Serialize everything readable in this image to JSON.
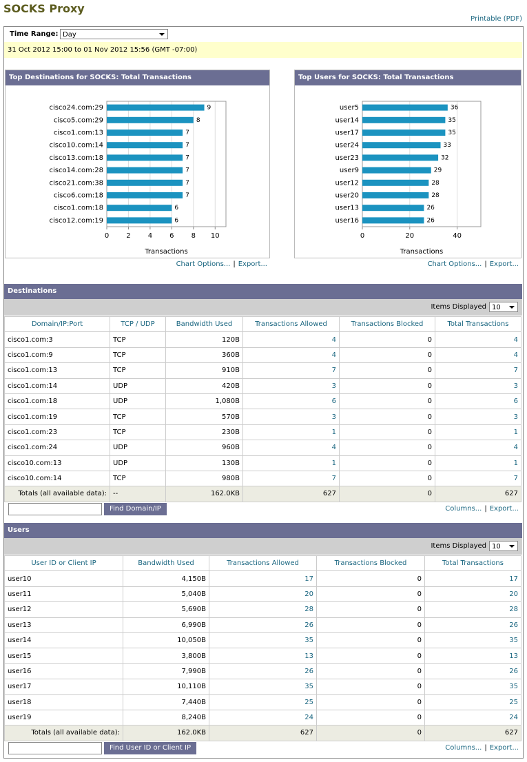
{
  "header": {
    "title": "SOCKS Proxy",
    "printable": "Printable (PDF)"
  },
  "time_range": {
    "label": "Time Range:",
    "value": "Day",
    "range": "31 Oct 2012 15:00 to 01 Nov 2012 15:56 (GMT -07:00)"
  },
  "links": {
    "chart_options": "Chart Options...",
    "export": "Export...",
    "columns": "Columns...",
    "separator": "|"
  },
  "chart_data": [
    {
      "type": "bar",
      "orientation": "horizontal",
      "title": "Top Destinations for SOCKS: Total Transactions",
      "categories": [
        "cisco24.com:29",
        "cisco5.com:29",
        "cisco1.com:13",
        "cisco10.com:14",
        "cisco13.com:18",
        "cisco14.com:28",
        "cisco21.com:38",
        "cisco6.com:18",
        "cisco1.com:18",
        "cisco12.com:19"
      ],
      "values": [
        9,
        8,
        7,
        7,
        7,
        7,
        7,
        7,
        6,
        6
      ],
      "xlim": [
        0,
        11
      ],
      "xticks": [
        0,
        2,
        4,
        6,
        8,
        10
      ],
      "x_label": "Transactions",
      "color": "#1b93c0",
      "grid": true
    },
    {
      "type": "bar",
      "orientation": "horizontal",
      "title": "Top Users for SOCKS: Total Transactions",
      "categories": [
        "user5",
        "user14",
        "user17",
        "user24",
        "user23",
        "user9",
        "user12",
        "user20",
        "user13",
        "user16"
      ],
      "values": [
        36,
        35,
        35,
        33,
        32,
        29,
        28,
        28,
        26,
        26
      ],
      "xlim": [
        0,
        50
      ],
      "xticks": [
        0,
        20,
        40
      ],
      "x_label": "Transactions",
      "color": "#1b93c0",
      "grid": true
    }
  ],
  "destinations": {
    "title": "Destinations",
    "items_label": "Items Displayed",
    "items_value": "10",
    "columns": [
      "Domain/IP:Port",
      "TCP / UDP",
      "Bandwidth Used",
      "Transactions Allowed",
      "Transactions Blocked",
      "Total Transactions"
    ],
    "rows": [
      [
        "cisco1.com:3",
        "TCP",
        "120B",
        4,
        0,
        4
      ],
      [
        "cisco1.com:9",
        "TCP",
        "360B",
        4,
        0,
        4
      ],
      [
        "cisco1.com:13",
        "TCP",
        "910B",
        7,
        0,
        7
      ],
      [
        "cisco1.com:14",
        "UDP",
        "420B",
        3,
        0,
        3
      ],
      [
        "cisco1.com:18",
        "UDP",
        "1,080B",
        6,
        0,
        6
      ],
      [
        "cisco1.com:19",
        "TCP",
        "570B",
        3,
        0,
        3
      ],
      [
        "cisco1.com:23",
        "TCP",
        "230B",
        1,
        0,
        1
      ],
      [
        "cisco1.com:24",
        "UDP",
        "960B",
        4,
        0,
        4
      ],
      [
        "cisco10.com:13",
        "UDP",
        "130B",
        1,
        0,
        1
      ],
      [
        "cisco10.com:14",
        "TCP",
        "980B",
        7,
        0,
        7
      ]
    ],
    "totals": [
      "Totals (all available data):",
      "--",
      "162.0KB",
      627,
      0,
      627
    ],
    "search_button": "Find Domain/IP"
  },
  "users": {
    "title": "Users",
    "items_label": "Items Displayed",
    "items_value": "10",
    "columns": [
      "User ID or Client IP",
      "Bandwidth Used",
      "Transactions Allowed",
      "Transactions Blocked",
      "Total Transactions"
    ],
    "rows": [
      [
        "user10",
        "4,150B",
        17,
        0,
        17
      ],
      [
        "user11",
        "5,040B",
        20,
        0,
        20
      ],
      [
        "user12",
        "5,690B",
        28,
        0,
        28
      ],
      [
        "user13",
        "6,990B",
        26,
        0,
        26
      ],
      [
        "user14",
        "10,050B",
        35,
        0,
        35
      ],
      [
        "user15",
        "3,800B",
        13,
        0,
        13
      ],
      [
        "user16",
        "7,990B",
        26,
        0,
        26
      ],
      [
        "user17",
        "10,110B",
        35,
        0,
        35
      ],
      [
        "user18",
        "7,440B",
        25,
        0,
        25
      ],
      [
        "user19",
        "8,240B",
        24,
        0,
        24
      ]
    ],
    "totals": [
      "Totals (all available data):",
      "162.0KB",
      627,
      0,
      627
    ],
    "search_button": "Find User ID or Client IP"
  }
}
